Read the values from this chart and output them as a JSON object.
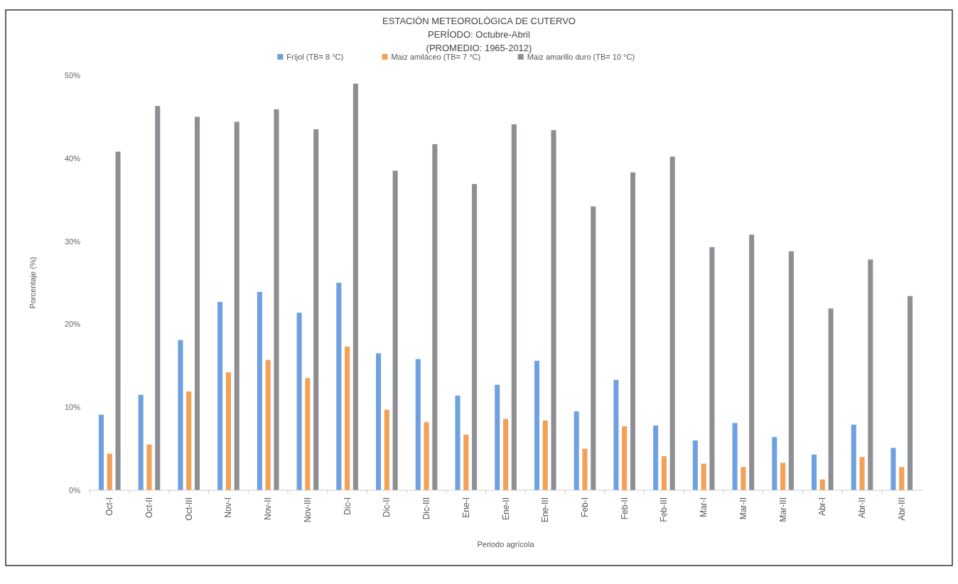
{
  "chart_data": {
    "type": "bar",
    "title": "ESTACIÓN METEOROLÓGICA DE CUTERVO",
    "subtitle": "PERÍODO: Octubre-Abril\n(PROMEDIO: 1965-2012)",
    "xlabel": "Periodo agrícola",
    "ylabel": "Porcentaje (%)",
    "categories": [
      "Oct-I",
      "Oct-II",
      "Oct-III",
      "Nov-I",
      "Nov-II",
      "Nov-III",
      "Dic-I",
      "Dic-II",
      "Dic-III",
      "Ene-I",
      "Ene-II",
      "Ene-III",
      "Feb-I",
      "Feb-II",
      "Feb-III",
      "Mar-I",
      "Mar-II",
      "Mar-III",
      "Abr-I",
      "Abr-II",
      "Abr-III"
    ],
    "series": [
      {
        "name": "Fríjol (TB= 8 °C)",
        "color": "#6fa1e0",
        "values": [
          9.1,
          11.5,
          18.1,
          22.7,
          23.9,
          21.4,
          25.0,
          16.5,
          15.8,
          11.4,
          12.7,
          15.6,
          9.5,
          13.3,
          7.8,
          6.0,
          8.1,
          6.4,
          4.3,
          7.9,
          5.1
        ]
      },
      {
        "name": "Maiz amiláceo (TB= 7 °C)",
        "color": "#f4a055",
        "values": [
          4.4,
          5.5,
          11.9,
          14.2,
          15.7,
          13.5,
          17.3,
          9.7,
          8.2,
          6.7,
          8.6,
          8.4,
          5.0,
          7.7,
          4.1,
          3.2,
          2.8,
          3.3,
          1.3,
          4.0,
          2.8
        ]
      },
      {
        "name": "Maiz amarillo duro (TB= 10 °C)",
        "color": "#8e8f94",
        "values": [
          40.8,
          46.3,
          45.0,
          44.4,
          45.9,
          43.5,
          49.0,
          38.5,
          41.7,
          36.9,
          44.1,
          43.4,
          34.2,
          38.3,
          40.2,
          29.3,
          30.8,
          28.8,
          21.9,
          27.8,
          23.4
        ]
      }
    ],
    "ylim": [
      0,
      50
    ],
    "yticks": [
      {
        "value": 0,
        "label": "0%"
      },
      {
        "value": 10,
        "label": "10%"
      },
      {
        "value": 20,
        "label": "20%"
      },
      {
        "value": 30,
        "label": "30%"
      },
      {
        "value": 40,
        "label": "40%"
      },
      {
        "value": 50,
        "label": "50%"
      }
    ],
    "legend": "top"
  }
}
